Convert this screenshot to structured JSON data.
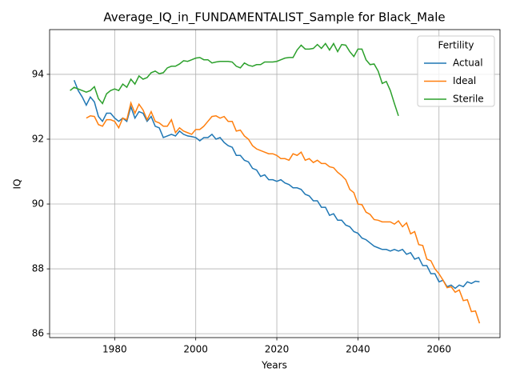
{
  "chart_data": {
    "type": "line",
    "title": "Average_IQ_in_FUNDAMENTALIST_Sample for Black_Male",
    "xlabel": "Years",
    "ylabel": "IQ",
    "x": [
      1969,
      1970,
      1971,
      1972,
      1973,
      1974,
      1975,
      1976,
      1977,
      1978,
      1979,
      1980,
      1981,
      1982,
      1983,
      1984,
      1985,
      1986,
      1987,
      1988,
      1989,
      1990,
      1991,
      1992,
      1993,
      1994,
      1995,
      1996,
      1997,
      1998,
      1999,
      2000,
      2001,
      2002,
      2003,
      2004,
      2005,
      2006,
      2007,
      2008,
      2009,
      2010,
      2011,
      2012,
      2013,
      2014,
      2015,
      2016,
      2017,
      2018,
      2019,
      2020,
      2021,
      2022,
      2023,
      2024,
      2025,
      2026,
      2027,
      2028,
      2029,
      2030,
      2031,
      2032,
      2033,
      2034,
      2035,
      2036,
      2037,
      2038,
      2039,
      2040,
      2041,
      2042,
      2043,
      2044,
      2045,
      2046,
      2047,
      2048,
      2049,
      2050,
      2051,
      2052,
      2053,
      2054,
      2055,
      2056,
      2057,
      2058,
      2059,
      2060,
      2061,
      2062,
      2063,
      2064,
      2065,
      2066,
      2067,
      2068,
      2069,
      2070
    ],
    "series": [
      {
        "name": "Actual",
        "color": "#1f77b4",
        "values": [
          null,
          93.82,
          93.5,
          93.3,
          93.05,
          93.3,
          93.15,
          92.7,
          92.55,
          92.8,
          92.8,
          92.65,
          92.55,
          92.65,
          92.55,
          93.0,
          92.65,
          92.85,
          92.8,
          92.55,
          92.7,
          92.4,
          92.35,
          92.05,
          92.1,
          92.15,
          92.1,
          92.25,
          92.15,
          92.1,
          92.08,
          92.05,
          91.95,
          92.05,
          92.05,
          92.15,
          92.0,
          92.05,
          91.9,
          91.8,
          91.75,
          91.5,
          91.5,
          91.35,
          91.3,
          91.1,
          91.05,
          90.85,
          90.9,
          90.75,
          90.75,
          90.7,
          90.75,
          90.65,
          90.6,
          90.5,
          90.5,
          90.45,
          90.3,
          90.25,
          90.1,
          90.1,
          89.9,
          89.9,
          89.65,
          89.7,
          89.5,
          89.5,
          89.35,
          89.3,
          89.15,
          89.1,
          88.95,
          88.9,
          88.8,
          88.7,
          88.65,
          88.6,
          88.6,
          88.55,
          88.6,
          88.55,
          88.6,
          88.45,
          88.5,
          88.3,
          88.35,
          88.1,
          88.1,
          87.85,
          87.85,
          87.6,
          87.65,
          87.45,
          87.5,
          87.4,
          87.5,
          87.45,
          87.6,
          87.55,
          87.62,
          87.6
        ]
      },
      {
        "name": "Ideal",
        "color": "#ff7f0e",
        "values": [
          null,
          null,
          null,
          null,
          92.65,
          92.72,
          92.7,
          92.45,
          92.4,
          92.6,
          92.6,
          92.55,
          92.35,
          92.65,
          92.6,
          93.12,
          92.8,
          93.08,
          92.9,
          92.6,
          92.85,
          92.55,
          92.5,
          92.4,
          92.4,
          92.6,
          92.2,
          92.35,
          92.25,
          92.2,
          92.15,
          92.3,
          92.3,
          92.4,
          92.55,
          92.7,
          92.72,
          92.65,
          92.7,
          92.55,
          92.55,
          92.25,
          92.28,
          92.1,
          92.0,
          91.8,
          91.7,
          91.65,
          91.6,
          91.55,
          91.55,
          91.5,
          91.4,
          91.4,
          91.35,
          91.55,
          91.5,
          91.6,
          91.35,
          91.4,
          91.28,
          91.35,
          91.25,
          91.25,
          91.15,
          91.12,
          90.98,
          90.88,
          90.75,
          90.45,
          90.35,
          90.0,
          89.98,
          89.75,
          89.68,
          89.52,
          89.5,
          89.45,
          89.45,
          89.45,
          89.38,
          89.48,
          89.3,
          89.42,
          89.08,
          89.15,
          88.75,
          88.72,
          88.3,
          88.25,
          88.0,
          87.85,
          87.65,
          87.42,
          87.45,
          87.28,
          87.35,
          87.02,
          87.05,
          86.68,
          86.7,
          86.32
        ]
      },
      {
        "name": "Sterile",
        "color": "#2ca02c",
        "values": [
          93.5,
          93.6,
          93.55,
          93.5,
          93.45,
          93.5,
          93.62,
          93.25,
          93.1,
          93.4,
          93.5,
          93.55,
          93.5,
          93.7,
          93.6,
          93.85,
          93.7,
          93.95,
          93.85,
          93.9,
          94.05,
          94.1,
          94.02,
          94.05,
          94.2,
          94.25,
          94.25,
          94.32,
          94.42,
          94.4,
          94.45,
          94.5,
          94.52,
          94.45,
          94.45,
          94.35,
          94.38,
          94.4,
          94.4,
          94.4,
          94.38,
          94.25,
          94.2,
          94.35,
          94.28,
          94.25,
          94.3,
          94.3,
          94.38,
          94.38,
          94.38,
          94.4,
          94.45,
          94.5,
          94.52,
          94.52,
          94.75,
          94.9,
          94.78,
          94.78,
          94.8,
          94.92,
          94.8,
          94.95,
          94.75,
          94.95,
          94.7,
          94.92,
          94.9,
          94.7,
          94.55,
          94.78,
          94.78,
          94.45,
          94.3,
          94.32,
          94.1,
          93.72,
          93.78,
          93.5,
          93.1,
          92.72,
          null,
          null,
          null,
          null,
          null,
          null,
          null,
          null,
          null,
          null,
          null,
          null,
          null,
          null,
          null,
          null,
          null,
          null,
          null,
          null
        ]
      }
    ],
    "xlim": [
      1963.95,
      2075.05
    ],
    "ylim": [
      85.88,
      95.38
    ],
    "xticks": [
      1980,
      2000,
      2020,
      2040,
      2060
    ],
    "yticks": [
      86,
      88,
      90,
      92,
      94
    ],
    "grid": true,
    "legend_title": "Fertility",
    "legend_loc": "upper right"
  }
}
